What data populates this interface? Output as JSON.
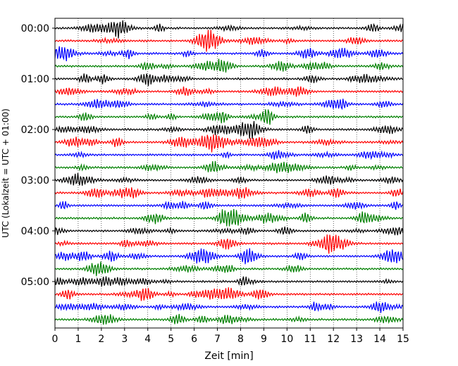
{
  "chart_data": {
    "type": "line",
    "title": "",
    "xlabel": "Zeit  [min]",
    "ylabel": "UTC (Lokalzeit = UTC + 01:00)",
    "xlim": [
      0,
      15
    ],
    "x_ticks": [
      "0",
      "1",
      "2",
      "3",
      "4",
      "5",
      "6",
      "7",
      "8",
      "9",
      "10",
      "11",
      "12",
      "13",
      "14",
      "15"
    ],
    "y_tick_labels": [
      "00:00",
      "01:00",
      "02:00",
      "03:00",
      "04:00",
      "05:00"
    ],
    "grid_vertical": true,
    "grid_style": "dotted",
    "trace_count": 24,
    "trace_colors": [
      "#000000",
      "#ff0000",
      "#0000ff",
      "#008000"
    ],
    "legend": "none"
  }
}
